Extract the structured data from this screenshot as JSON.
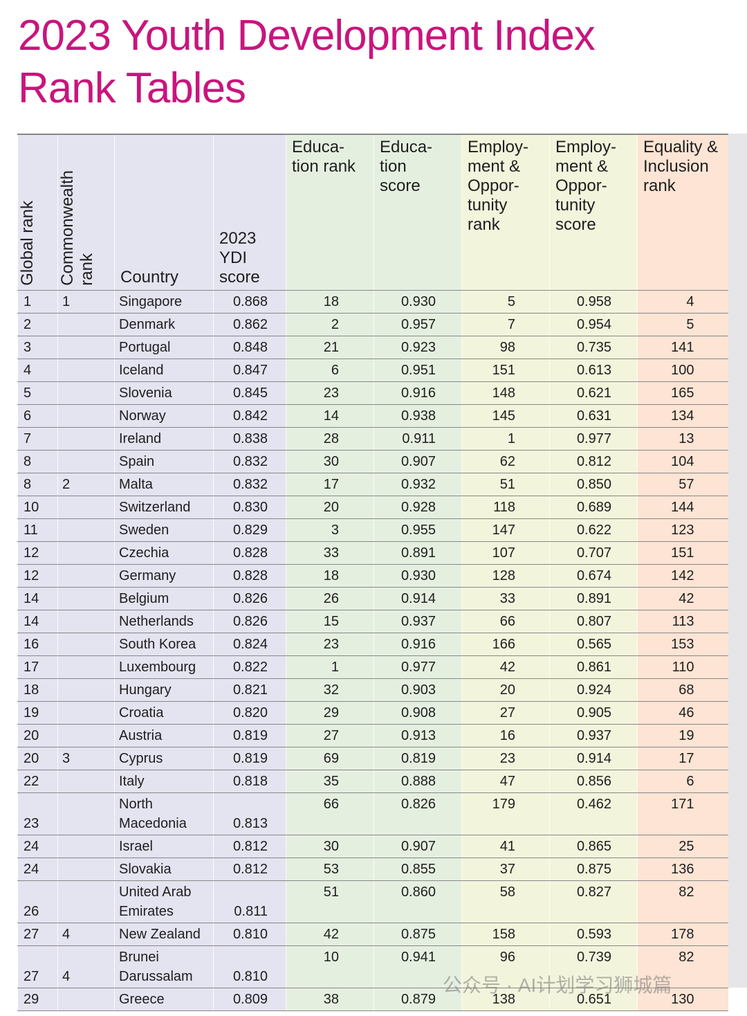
{
  "header": {
    "title": "2023 Youth Development Index\nRank Tables"
  },
  "table": {
    "columns": [
      "Global rank",
      "Commonwealth\nrank",
      "Country",
      "2023\nYDI\nscore",
      "Educa-\ntion rank",
      "Educa-\ntion\nscore",
      "Employ-\nment &\nOppor-\ntunity\nrank",
      "Employ-\nment &\nOppor-\ntunity\nscore",
      "Equality &\nInclusion\nrank"
    ],
    "rows": [
      [
        "1",
        "1",
        "Singapore",
        "0.868",
        "18",
        "0.930",
        "5",
        "0.958",
        "4"
      ],
      [
        "2",
        null,
        "Denmark",
        "0.862",
        "2",
        "0.957",
        "7",
        "0.954",
        "5"
      ],
      [
        "3",
        null,
        "Portugal",
        "0.848",
        "21",
        "0.923",
        "98",
        "0.735",
        "141"
      ],
      [
        "4",
        null,
        "Iceland",
        "0.847",
        "6",
        "0.951",
        "151",
        "0.613",
        "100"
      ],
      [
        "5",
        null,
        "Slovenia",
        "0.845",
        "23",
        "0.916",
        "148",
        "0.621",
        "165"
      ],
      [
        "6",
        null,
        "Norway",
        "0.842",
        "14",
        "0.938",
        "145",
        "0.631",
        "134"
      ],
      [
        "7",
        null,
        "Ireland",
        "0.838",
        "28",
        "0.911",
        "1",
        "0.977",
        "13"
      ],
      [
        "8",
        null,
        "Spain",
        "0.832",
        "30",
        "0.907",
        "62",
        "0.812",
        "104"
      ],
      [
        "8",
        "2",
        "Malta",
        "0.832",
        "17",
        "0.932",
        "51",
        "0.850",
        "57"
      ],
      [
        "10",
        null,
        "Switzerland",
        "0.830",
        "20",
        "0.928",
        "118",
        "0.689",
        "144"
      ],
      [
        "11",
        null,
        "Sweden",
        "0.829",
        "3",
        "0.955",
        "147",
        "0.622",
        "123"
      ],
      [
        "12",
        null,
        "Czechia",
        "0.828",
        "33",
        "0.891",
        "107",
        "0.707",
        "151"
      ],
      [
        "12",
        null,
        "Germany",
        "0.828",
        "18",
        "0.930",
        "128",
        "0.674",
        "142"
      ],
      [
        "14",
        null,
        "Belgium",
        "0.826",
        "26",
        "0.914",
        "33",
        "0.891",
        "42"
      ],
      [
        "14",
        null,
        "Netherlands",
        "0.826",
        "15",
        "0.937",
        "66",
        "0.807",
        "113"
      ],
      [
        "16",
        null,
        "South Korea",
        "0.824",
        "23",
        "0.916",
        "166",
        "0.565",
        "153"
      ],
      [
        "17",
        null,
        "Luxembourg",
        "0.822",
        "1",
        "0.977",
        "42",
        "0.861",
        "110"
      ],
      [
        "18",
        null,
        "Hungary",
        "0.821",
        "32",
        "0.903",
        "20",
        "0.924",
        "68"
      ],
      [
        "19",
        null,
        "Croatia",
        "0.820",
        "29",
        "0.908",
        "27",
        "0.905",
        "46"
      ],
      [
        "20",
        null,
        "Austria",
        "0.819",
        "27",
        "0.913",
        "16",
        "0.937",
        "19"
      ],
      [
        "20",
        "3",
        "Cyprus",
        "0.819",
        "69",
        "0.819",
        "23",
        "0.914",
        "17"
      ],
      [
        "22",
        null,
        "Italy",
        "0.818",
        "35",
        "0.888",
        "47",
        "0.856",
        "6"
      ],
      [
        "23",
        null,
        "North\nMacedonia",
        "0.813",
        "66",
        "0.826",
        "179",
        "0.462",
        "171"
      ],
      [
        "24",
        null,
        "Israel",
        "0.812",
        "30",
        "0.907",
        "41",
        "0.865",
        "25"
      ],
      [
        "24",
        null,
        "Slovakia",
        "0.812",
        "53",
        "0.855",
        "37",
        "0.875",
        "136"
      ],
      [
        "26",
        null,
        "United Arab\nEmirates",
        "0.811",
        "51",
        "0.860",
        "58",
        "0.827",
        "82"
      ],
      [
        "27",
        "4",
        "New Zealand",
        "0.810",
        "42",
        "0.875",
        "158",
        "0.593",
        "178"
      ],
      [
        "27",
        "4",
        "Brunei\nDarussalam",
        "0.810",
        "10",
        "0.941",
        "96",
        "0.739",
        "82"
      ],
      [
        "29",
        null,
        "Greece",
        "0.809",
        "38",
        "0.879",
        "138",
        "0.651",
        "130"
      ]
    ]
  },
  "watermark": "公众号 · AI计划学习狮城篇"
}
